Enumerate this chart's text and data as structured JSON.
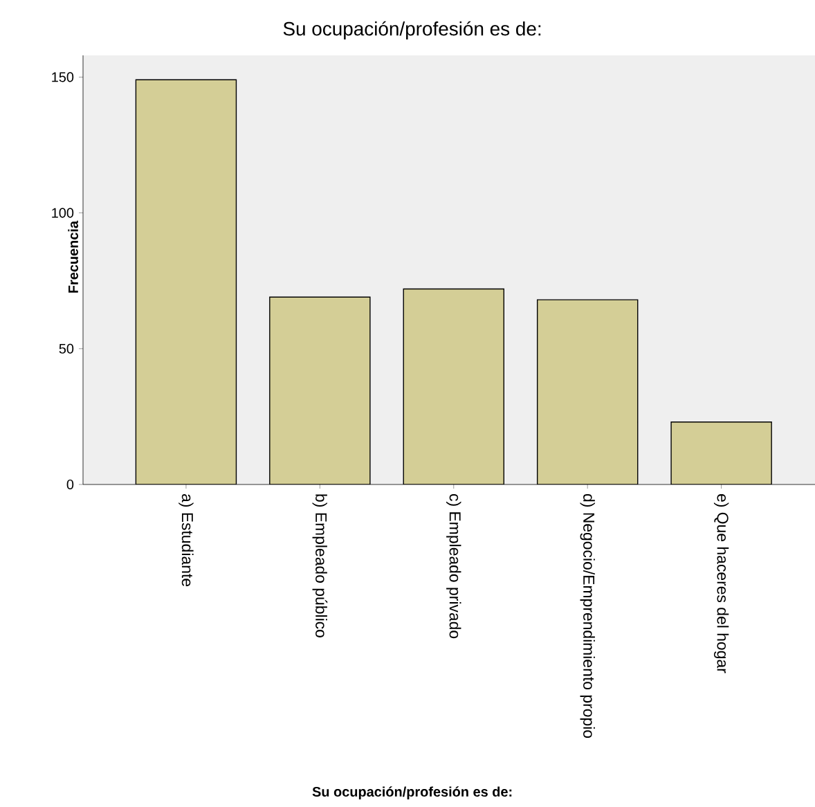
{
  "chart_data": {
    "type": "bar",
    "title": "Su ocupación/profesión es de:",
    "xlabel": "Su ocupación/profesión es de:",
    "ylabel": "Frecuencia",
    "categories": [
      "a) Estudiante",
      "b) Empleado público",
      "c) Empleado privado",
      "d) Negocio/Emprendimiento propio",
      "e) Que haceres del hogar"
    ],
    "values": [
      149,
      69,
      72,
      68,
      23
    ],
    "color": "#d4ce96",
    "ylim": [
      0,
      158
    ],
    "yticks": [
      0,
      50,
      100,
      150
    ],
    "grid": false
  }
}
